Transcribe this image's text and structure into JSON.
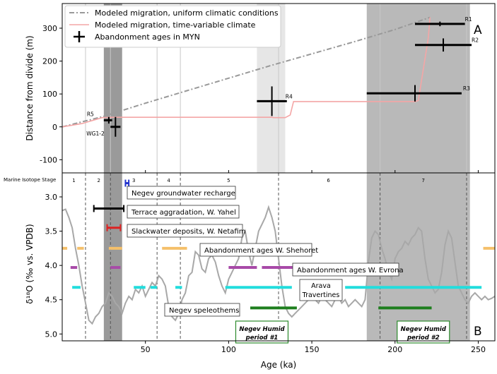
{
  "panel_a_label": "A",
  "panel_b_label": "B",
  "chart_data": [
    {
      "type": "line",
      "panel": "A",
      "ylabel": "Distance from divide (m)",
      "xlim": [
        0,
        260
      ],
      "ylim": [
        -140,
        375
      ],
      "yticks": [
        -100,
        0,
        100,
        200,
        300
      ],
      "xticks": [
        50,
        100,
        150,
        200,
        250
      ],
      "vertical_grid_x": [
        14,
        29,
        57,
        71,
        130,
        191,
        243
      ],
      "grey_bands": [
        {
          "x0": 25,
          "x1": 36,
          "color": "#9a9a9a"
        },
        {
          "x0": 117,
          "x1": 134,
          "color": "#e6e6e6"
        },
        {
          "x0": 183,
          "x1": 245,
          "color": "#b9b9b9"
        }
      ],
      "legend": {
        "placement": "top-left",
        "entries": [
          "Modeled migration, uniform climatic conditions",
          "Modeled migration, time-variable climate",
          "Abandonment ages in MYN"
        ]
      },
      "series": [
        {
          "name": "Modeled migration, uniform climatic conditions",
          "color": "#999999",
          "style": "dashdot",
          "x": [
            0,
            25,
            50,
            75,
            100,
            125,
            150,
            175,
            200,
            221
          ],
          "y": [
            0,
            32,
            72,
            110,
            148,
            186,
            222,
            258,
            296,
            333
          ]
        },
        {
          "name": "Modeled migration, time-variable climate",
          "color": "#f4a6a6",
          "style": "solid",
          "x": [
            0,
            12,
            24,
            30,
            60,
            80,
            100,
            120,
            126,
            127,
            134,
            137,
            139,
            160,
            185,
            212,
            214,
            220,
            221
          ],
          "y": [
            0,
            10,
            28,
            29,
            29,
            29,
            29,
            29,
            29,
            28,
            28,
            36,
            77,
            77,
            77,
            77,
            80,
            270,
            333
          ]
        }
      ],
      "abandonment_ages": [
        {
          "label": "R1",
          "age": 227,
          "age_min": 212,
          "age_max": 242,
          "dist": 313,
          "dist_err": 7
        },
        {
          "label": "R2",
          "age": 229,
          "age_min": 212,
          "age_max": 246,
          "dist": 249,
          "dist_err": 20
        },
        {
          "label": "R3",
          "age": 212,
          "age_min": 183,
          "age_max": 240,
          "dist": 102,
          "dist_err": 25
        },
        {
          "label": "R4",
          "age": 126,
          "age_min": 117,
          "age_max": 135,
          "dist": 78,
          "dist_err": 45
        },
        {
          "label": "R5",
          "age": 28,
          "age_min": 25,
          "age_max": 30,
          "dist": 20,
          "dist_err": 10
        },
        {
          "label": "WG1-2",
          "age": 32,
          "age_min": 29,
          "age_max": 35,
          "dist": 0,
          "dist_err": 30
        }
      ]
    },
    {
      "type": "line",
      "panel": "B",
      "xlabel": "Age (ka)",
      "ylabel": "δ¹⁸O (‰ vs. VPDB)",
      "xlim": [
        0,
        260
      ],
      "ylim": [
        5.1,
        2.65
      ],
      "yticks": [
        3.0,
        3.5,
        4.0,
        4.5,
        5.0
      ],
      "xticks": [
        50,
        100,
        150,
        200,
        250
      ],
      "mis_title": "Marine Isotope Stage",
      "mis_boundaries": [
        14,
        29,
        57,
        71,
        130,
        191,
        243
      ],
      "mis_labels": [
        {
          "text": "1",
          "x": 7
        },
        {
          "text": "2",
          "x": 22
        },
        {
          "text": "3",
          "x": 43
        },
        {
          "text": "4",
          "x": 64
        },
        {
          "text": "5",
          "x": 100
        },
        {
          "text": "6",
          "x": 160
        },
        {
          "text": "7",
          "x": 217
        }
      ],
      "grey_bands": [
        {
          "x0": 25,
          "x1": 36,
          "color": "#9a9a9a"
        },
        {
          "x0": 183,
          "x1": 245,
          "color": "#b9b9b9"
        }
      ],
      "d18o_curve": {
        "color": "#a8a8a8",
        "x": [
          0,
          2,
          4,
          6,
          8,
          10,
          12,
          14,
          16,
          18,
          20,
          22,
          24,
          26,
          28,
          30,
          32,
          34,
          36,
          38,
          40,
          42,
          44,
          46,
          48,
          50,
          52,
          54,
          56,
          58,
          60,
          62,
          64,
          66,
          68,
          70,
          72,
          74,
          76,
          78,
          80,
          82,
          84,
          86,
          88,
          90,
          92,
          94,
          96,
          98,
          100,
          102,
          104,
          106,
          108,
          110,
          112,
          114,
          116,
          118,
          120,
          122,
          124,
          126,
          128,
          130,
          132,
          134,
          136,
          138,
          140,
          142,
          144,
          146,
          148,
          150,
          152,
          154,
          156,
          158,
          160,
          162,
          164,
          166,
          168,
          170,
          172,
          174,
          176,
          178,
          180,
          182,
          184,
          186,
          188,
          190,
          192,
          194,
          196,
          198,
          200,
          202,
          204,
          206,
          208,
          210,
          212,
          214,
          216,
          218,
          220,
          222,
          224,
          226,
          228,
          230,
          232,
          234,
          236,
          238,
          240,
          242,
          244,
          246,
          248,
          250,
          252,
          254,
          256,
          258,
          260
        ],
        "y": [
          3.2,
          3.18,
          3.3,
          3.45,
          3.75,
          4.0,
          4.3,
          4.55,
          4.8,
          4.85,
          4.75,
          4.7,
          4.6,
          4.55,
          4.4,
          4.45,
          4.55,
          4.6,
          4.7,
          4.55,
          4.45,
          4.5,
          4.35,
          4.4,
          4.3,
          4.45,
          4.35,
          4.25,
          4.3,
          4.15,
          4.2,
          4.3,
          4.6,
          4.75,
          4.8,
          4.7,
          4.5,
          4.4,
          4.15,
          4.1,
          3.8,
          3.85,
          4.05,
          4.1,
          3.9,
          3.85,
          3.95,
          4.15,
          4.3,
          4.4,
          4.2,
          4.1,
          4.0,
          3.9,
          3.6,
          3.5,
          3.8,
          4.0,
          3.75,
          3.5,
          3.4,
          3.3,
          3.15,
          3.3,
          3.5,
          3.9,
          4.3,
          4.6,
          4.7,
          4.75,
          4.7,
          4.65,
          4.6,
          4.55,
          4.5,
          4.45,
          4.5,
          4.55,
          4.45,
          4.5,
          4.55,
          4.6,
          4.5,
          4.45,
          4.55,
          4.5,
          4.6,
          4.55,
          4.5,
          4.55,
          4.6,
          4.5,
          3.95,
          3.6,
          3.5,
          3.55,
          3.75,
          3.9,
          4.1,
          4.2,
          3.9,
          3.8,
          3.75,
          3.65,
          3.7,
          3.6,
          3.55,
          3.45,
          3.5,
          3.9,
          4.2,
          4.3,
          4.4,
          4.35,
          4.1,
          3.7,
          3.5,
          3.6,
          3.95,
          4.3,
          4.4,
          4.5,
          4.55,
          4.45,
          4.4,
          4.45,
          4.5,
          4.45,
          4.5,
          4.48,
          4.45
        ]
      },
      "records": [
        {
          "label": "Negev groundwater recharge",
          "color": "#2233cc",
          "y": 2.8,
          "segments": [
            [
              38,
              40
            ]
          ],
          "style": "errorbar"
        },
        {
          "label": "Terrace aggradation, W. Yahel",
          "color": "#000000",
          "y": 3.17,
          "segments": [
            [
              19,
              37
            ]
          ],
          "style": "errorbar"
        },
        {
          "label": "Slackwater deposits, W. Netafim",
          "color": "#dd2222",
          "y": 3.45,
          "segments": [
            [
              27,
              35
            ]
          ],
          "style": "errorbar"
        },
        {
          "label": "Abandonment ages W. Shehoret",
          "color": "#f5c06a",
          "y": 3.75,
          "segments": [
            [
              0,
              3
            ],
            [
              9,
              13
            ],
            [
              28,
              36
            ],
            [
              60,
              75
            ],
            [
              253,
              260
            ]
          ],
          "style": "bar"
        },
        {
          "label": "Abandonment ages W. Evrona",
          "color": "#a84aa8",
          "y": 4.03,
          "segments": [
            [
              5,
              9
            ],
            [
              29,
              35
            ],
            [
              100,
              117
            ],
            [
              120,
              141
            ]
          ],
          "style": "bar"
        },
        {
          "label": "Arava Travertines",
          "color": "#22dddd",
          "y": 4.32,
          "segments": [
            [
              6,
              11
            ],
            [
              43,
              50
            ],
            [
              53,
              57
            ],
            [
              68,
              72
            ],
            [
              98,
              138
            ],
            [
              170,
              252
            ]
          ],
          "style": "bar"
        },
        {
          "label": "Negev speleothems",
          "color": "#1e7f1e",
          "y": 4.62,
          "segments": [
            [
              113,
              141
            ],
            [
              190,
              222
            ]
          ],
          "style": "bar"
        }
      ],
      "humid_periods": [
        {
          "label": "Negev Humid period #1",
          "x": 120
        },
        {
          "label": "Negev Humid period #2",
          "x": 217
        }
      ]
    }
  ]
}
